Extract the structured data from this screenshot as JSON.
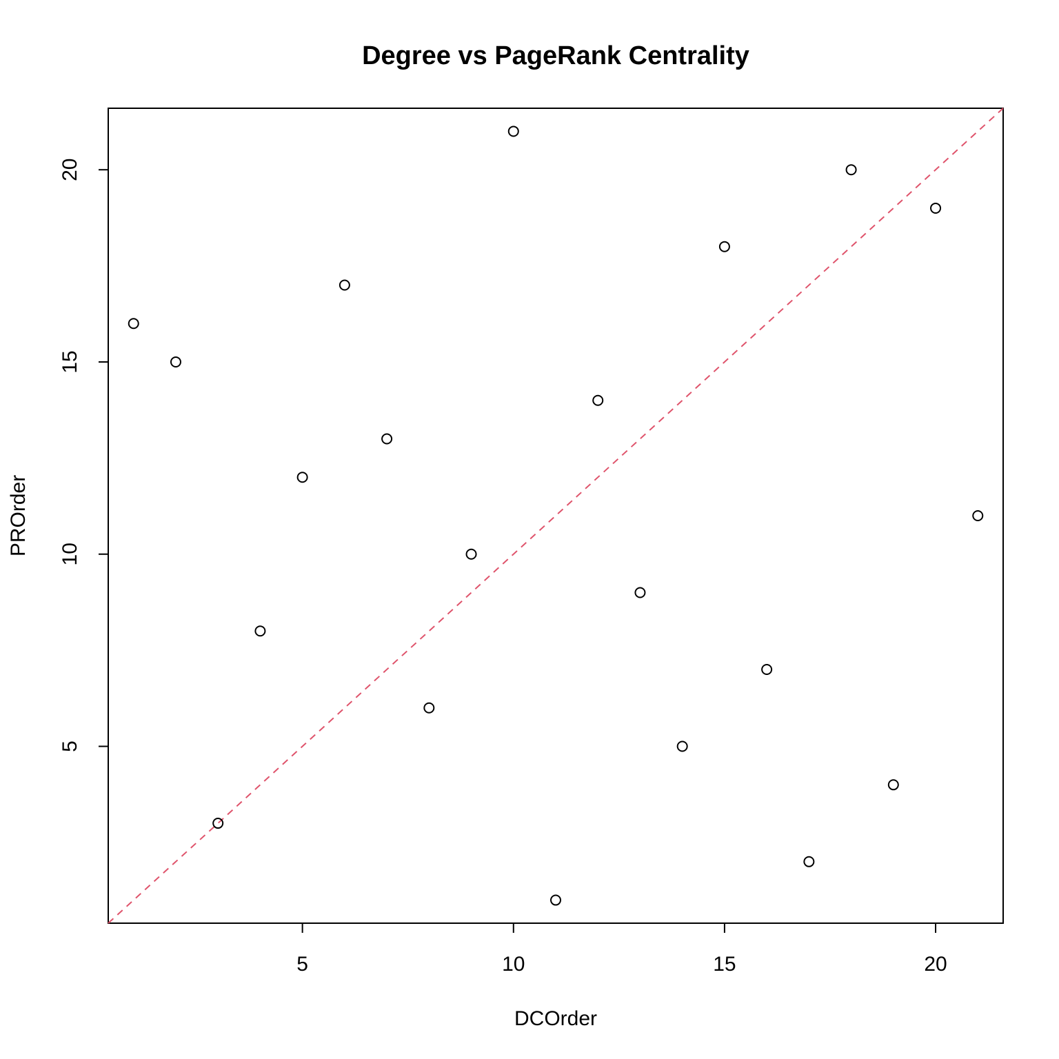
{
  "chart_data": {
    "type": "scatter",
    "title": "Degree vs PageRank Centrality",
    "xlabel": "DCOrder",
    "ylabel": "PROrder",
    "xlim": [
      0.4,
      21.6
    ],
    "ylim": [
      0.4,
      21.6
    ],
    "xticks": [
      5,
      10,
      15,
      20
    ],
    "yticks": [
      5,
      10,
      15,
      20
    ],
    "grid": false,
    "legend": "none",
    "marker": "open-circle",
    "reference_line": {
      "slope": 1,
      "intercept": 0,
      "style": "dashed",
      "color": "#DF536B"
    },
    "points": [
      {
        "x": 1,
        "y": 16
      },
      {
        "x": 2,
        "y": 15
      },
      {
        "x": 3,
        "y": 3
      },
      {
        "x": 4,
        "y": 8
      },
      {
        "x": 5,
        "y": 12
      },
      {
        "x": 6,
        "y": 17
      },
      {
        "x": 7,
        "y": 13
      },
      {
        "x": 8,
        "y": 6
      },
      {
        "x": 9,
        "y": 10
      },
      {
        "x": 10,
        "y": 21
      },
      {
        "x": 11,
        "y": 1
      },
      {
        "x": 12,
        "y": 14
      },
      {
        "x": 13,
        "y": 9
      },
      {
        "x": 14,
        "y": 5
      },
      {
        "x": 15,
        "y": 18
      },
      {
        "x": 16,
        "y": 7
      },
      {
        "x": 17,
        "y": 2
      },
      {
        "x": 18,
        "y": 20
      },
      {
        "x": 19,
        "y": 4
      },
      {
        "x": 20,
        "y": 19
      },
      {
        "x": 21,
        "y": 11
      }
    ]
  }
}
